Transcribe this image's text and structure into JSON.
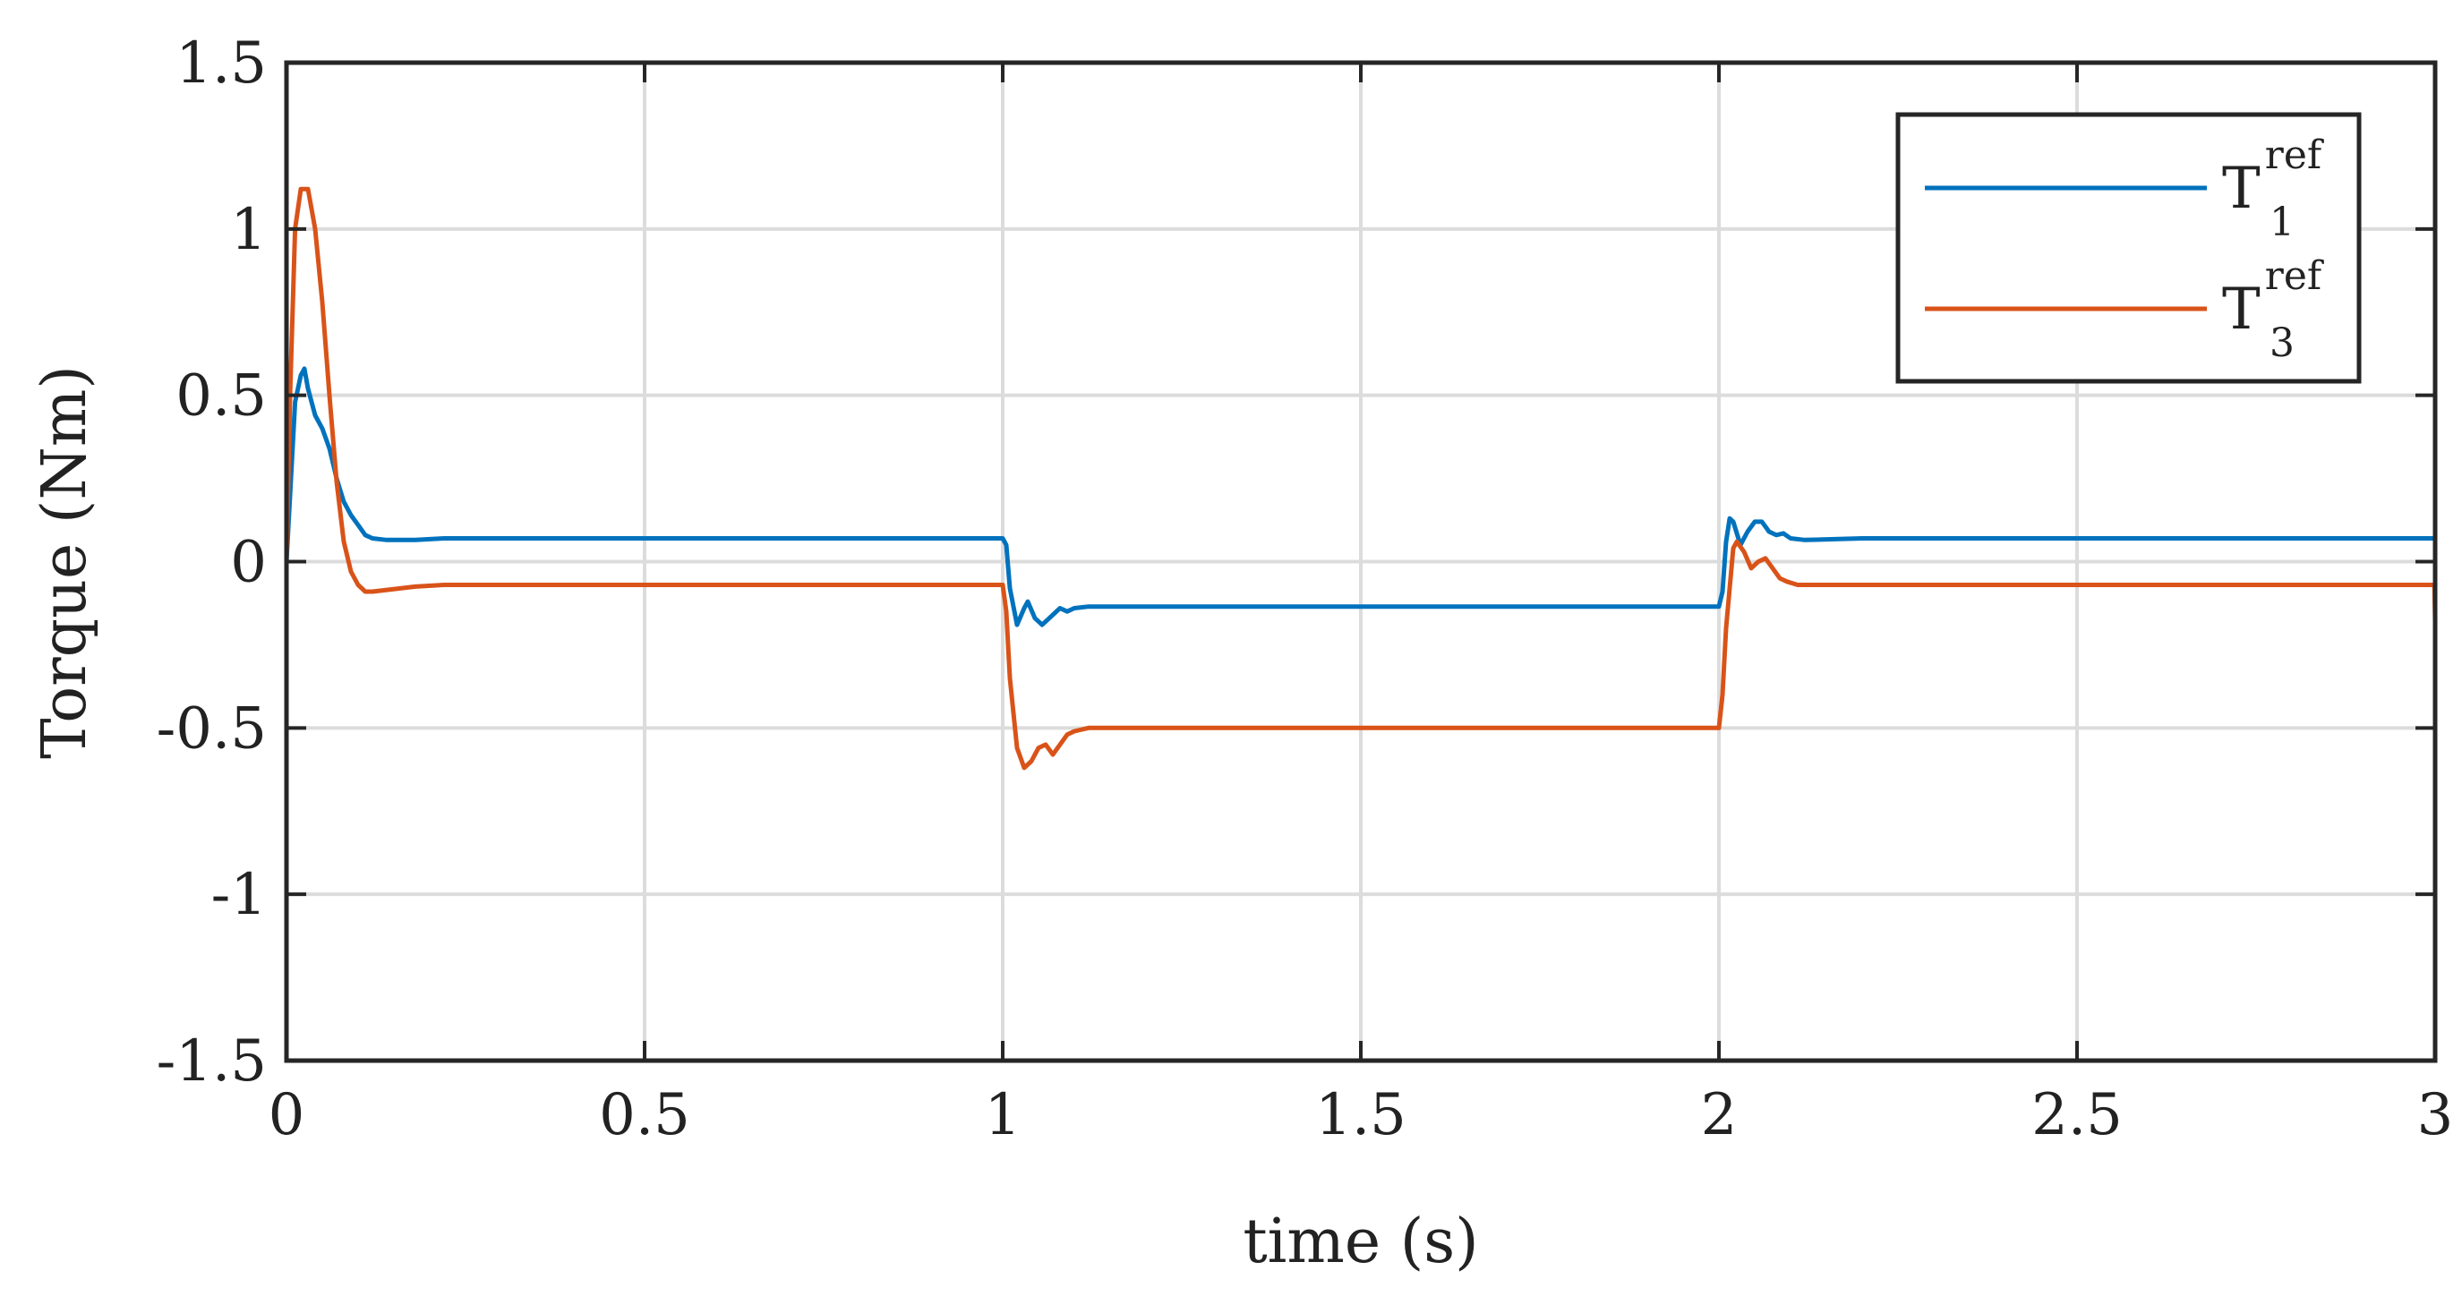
{
  "chart_data": {
    "type": "line",
    "xlabel": "time (s)",
    "ylabel": "Torque (Nm)",
    "xlim": [
      0,
      3
    ],
    "ylim": [
      -1.5,
      1.5
    ],
    "x_ticks": [
      "0",
      "0.5",
      "1",
      "1.5",
      "2",
      "2.5",
      "3"
    ],
    "y_ticks": [
      "-1.5",
      "-1",
      "-0.5",
      "0",
      "0.5",
      "1",
      "1.5"
    ],
    "grid": true,
    "legend_position": "top-right",
    "legend": [
      {
        "base": "T",
        "sup": "ref",
        "sub": "1",
        "color": "#0072BD"
      },
      {
        "base": "T",
        "sup": "ref",
        "sub": "3",
        "color": "#D95319"
      }
    ],
    "series": [
      {
        "color": "#0072BD",
        "points": [
          [
            0,
            0
          ],
          [
            0.005,
            0.2
          ],
          [
            0.012,
            0.48
          ],
          [
            0.02,
            0.56
          ],
          [
            0.025,
            0.58
          ],
          [
            0.03,
            0.52
          ],
          [
            0.04,
            0.44
          ],
          [
            0.05,
            0.4
          ],
          [
            0.06,
            0.34
          ],
          [
            0.07,
            0.25
          ],
          [
            0.08,
            0.18
          ],
          [
            0.09,
            0.14
          ],
          [
            0.1,
            0.11
          ],
          [
            0.11,
            0.08
          ],
          [
            0.12,
            0.07
          ],
          [
            0.14,
            0.065
          ],
          [
            0.18,
            0.065
          ],
          [
            0.22,
            0.07
          ],
          [
            1.0,
            0.07
          ],
          [
            1.005,
            0.05
          ],
          [
            1.01,
            -0.08
          ],
          [
            1.02,
            -0.19
          ],
          [
            1.03,
            -0.14
          ],
          [
            1.035,
            -0.12
          ],
          [
            1.045,
            -0.17
          ],
          [
            1.055,
            -0.19
          ],
          [
            1.065,
            -0.17
          ],
          [
            1.08,
            -0.14
          ],
          [
            1.09,
            -0.15
          ],
          [
            1.1,
            -0.14
          ],
          [
            1.12,
            -0.135
          ],
          [
            1.15,
            -0.135
          ],
          [
            2.0,
            -0.135
          ],
          [
            2.005,
            -0.09
          ],
          [
            2.01,
            0.06
          ],
          [
            2.015,
            0.13
          ],
          [
            2.02,
            0.12
          ],
          [
            2.03,
            0.05
          ],
          [
            2.04,
            0.09
          ],
          [
            2.05,
            0.12
          ],
          [
            2.06,
            0.12
          ],
          [
            2.07,
            0.09
          ],
          [
            2.08,
            0.08
          ],
          [
            2.09,
            0.085
          ],
          [
            2.1,
            0.07
          ],
          [
            2.12,
            0.065
          ],
          [
            2.2,
            0.07
          ],
          [
            3.0,
            0.07
          ]
        ]
      },
      {
        "color": "#D95319",
        "points": [
          [
            0,
            0
          ],
          [
            0.005,
            0.5
          ],
          [
            0.012,
            1.0
          ],
          [
            0.02,
            1.12
          ],
          [
            0.03,
            1.12
          ],
          [
            0.04,
            1.0
          ],
          [
            0.05,
            0.78
          ],
          [
            0.06,
            0.5
          ],
          [
            0.07,
            0.24
          ],
          [
            0.08,
            0.06
          ],
          [
            0.09,
            -0.03
          ],
          [
            0.1,
            -0.07
          ],
          [
            0.11,
            -0.09
          ],
          [
            0.12,
            -0.09
          ],
          [
            0.14,
            -0.085
          ],
          [
            0.18,
            -0.075
          ],
          [
            0.22,
            -0.07
          ],
          [
            1.0,
            -0.07
          ],
          [
            1.005,
            -0.15
          ],
          [
            1.01,
            -0.35
          ],
          [
            1.02,
            -0.56
          ],
          [
            1.03,
            -0.62
          ],
          [
            1.04,
            -0.6
          ],
          [
            1.05,
            -0.56
          ],
          [
            1.06,
            -0.55
          ],
          [
            1.07,
            -0.58
          ],
          [
            1.08,
            -0.55
          ],
          [
            1.09,
            -0.52
          ],
          [
            1.1,
            -0.51
          ],
          [
            1.12,
            -0.5
          ],
          [
            1.15,
            -0.5
          ],
          [
            2.0,
            -0.5
          ],
          [
            2.005,
            -0.4
          ],
          [
            2.01,
            -0.2
          ],
          [
            2.02,
            0.04
          ],
          [
            2.025,
            0.06
          ],
          [
            2.035,
            0.03
          ],
          [
            2.045,
            -0.02
          ],
          [
            2.055,
            0.0
          ],
          [
            2.065,
            0.01
          ],
          [
            2.075,
            -0.02
          ],
          [
            2.085,
            -0.05
          ],
          [
            2.095,
            -0.06
          ],
          [
            2.11,
            -0.07
          ],
          [
            2.15,
            -0.07
          ],
          [
            2.999,
            -0.07
          ],
          [
            3.0,
            -0.18
          ]
        ]
      }
    ]
  }
}
